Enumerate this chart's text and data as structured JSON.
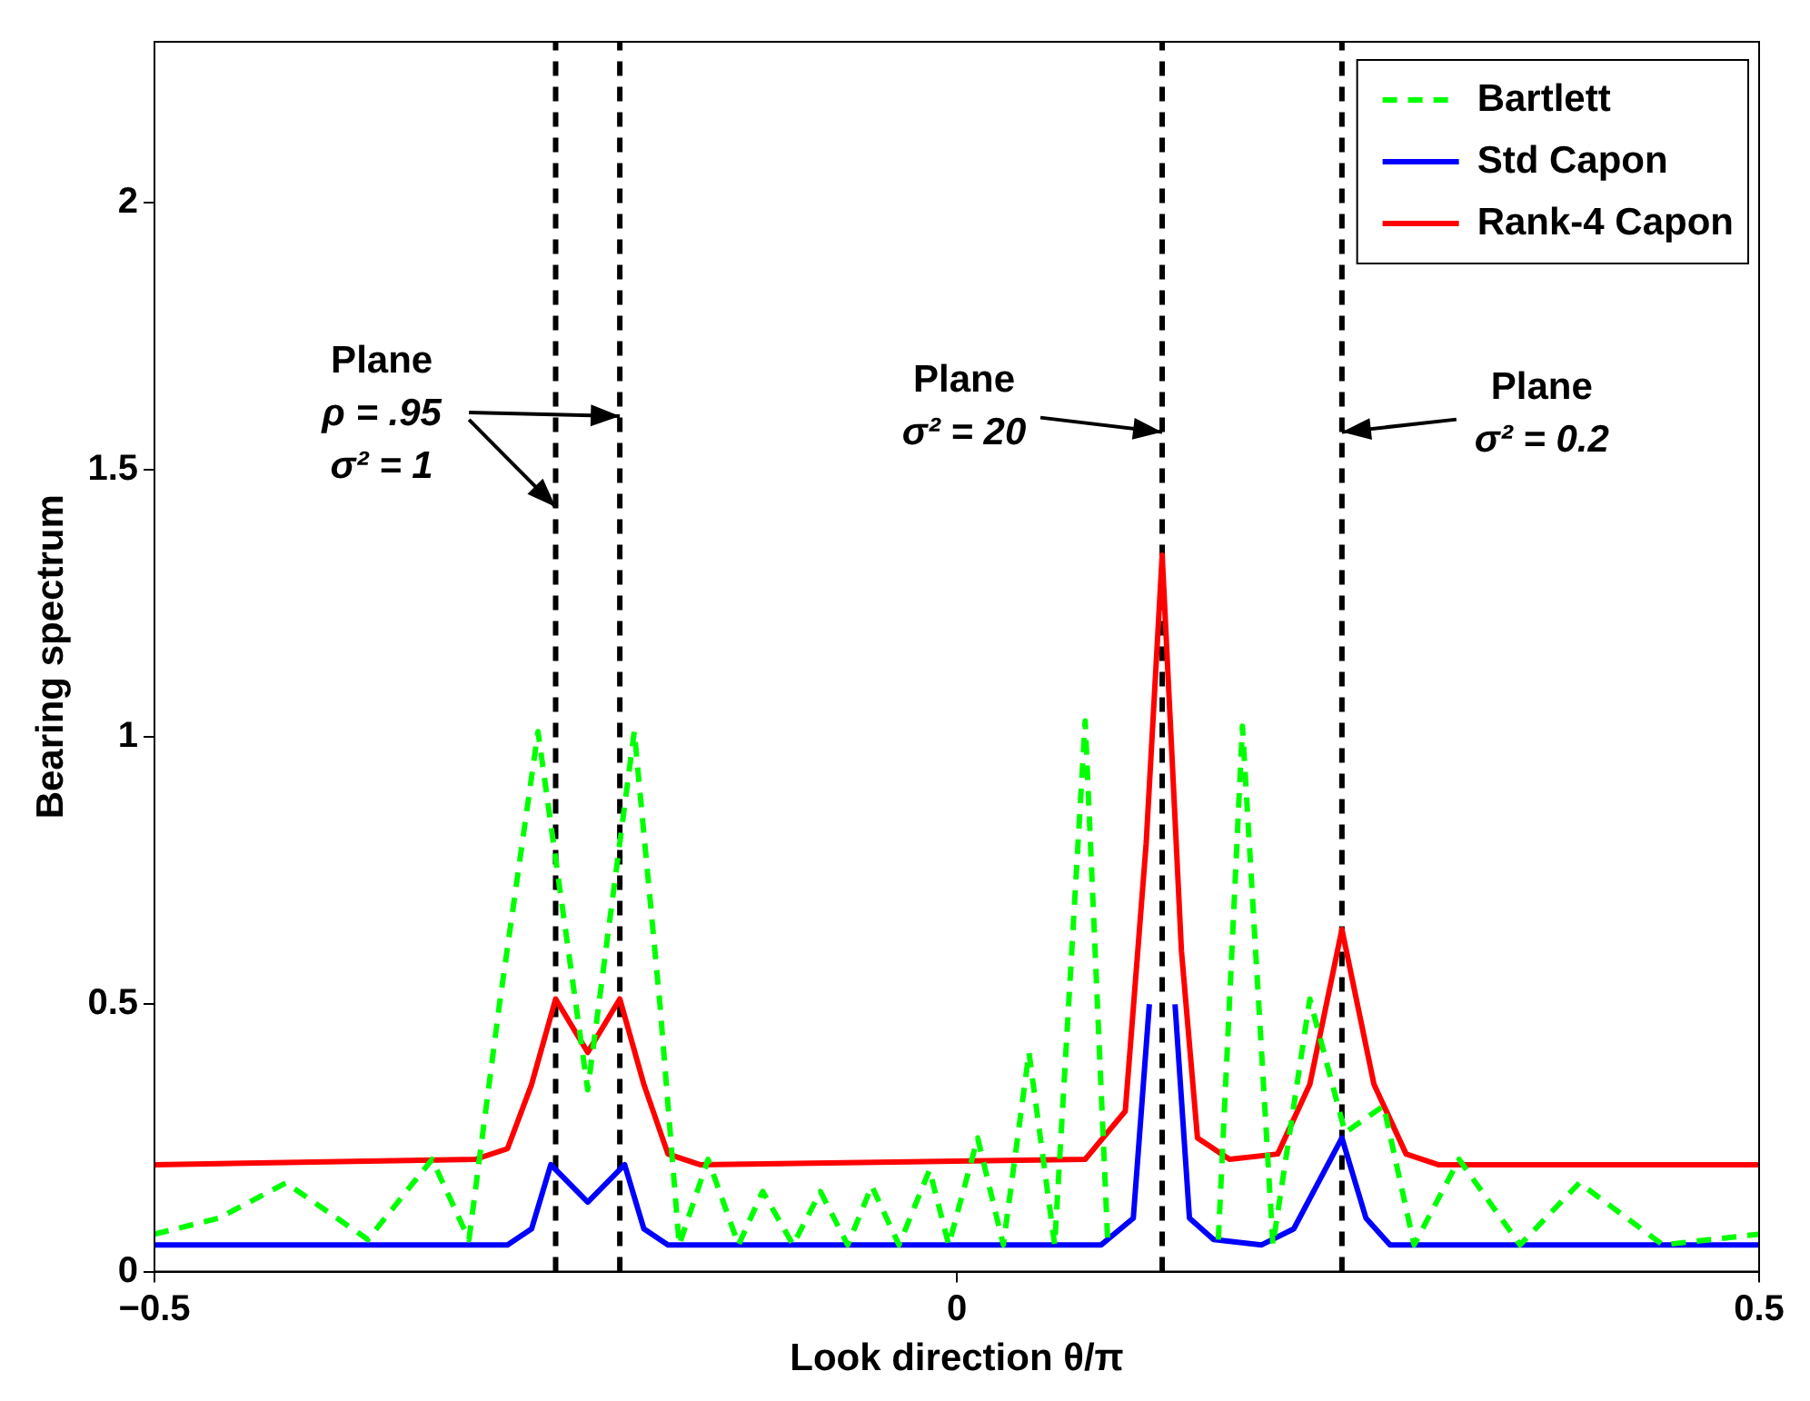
{
  "chart_data": {
    "type": "line",
    "xlabel": "Look direction θ/π",
    "ylabel": "Bearing spectrum",
    "xlim": [
      -0.5,
      0.5
    ],
    "xticks": [
      {
        "value": -0.5,
        "label": "−0.5"
      },
      0,
      0.5
    ],
    "ylim": [
      0,
      2.3
    ],
    "yticks": [
      0,
      0.5,
      1,
      1.5,
      2
    ],
    "grid": false,
    "legend": "top right",
    "marker": "none",
    "series": [
      {
        "name": "Bartlett",
        "color": "#00ff00",
        "line_style": "dashed",
        "x": [
          -0.5,
          -0.46,
          -0.418,
          -0.367,
          -0.327,
          -0.304,
          -0.285,
          -0.261,
          -0.23,
          -0.201,
          -0.185,
          -0.173,
          -0.155,
          -0.136,
          -0.121,
          -0.102,
          -0.085,
          -0.068,
          -0.053,
          -0.036,
          -0.017,
          -0.005,
          0.013,
          0.029,
          0.045,
          0.061,
          0.08,
          0.094,
          0.103,
          0.128,
          0.154,
          0.163,
          0.178,
          0.197,
          0.22,
          0.242,
          0.266,
          0.285,
          0.313,
          0.351,
          0.388,
          0.44,
          0.5
        ],
        "values": [
          0.07,
          0.1,
          0.166,
          0.06,
          0.21,
          0.06,
          0.5,
          1.01,
          0.34,
          1.01,
          0.5,
          0.05,
          0.21,
          0.05,
          0.15,
          0.05,
          0.15,
          0.05,
          0.16,
          0.05,
          0.19,
          0.05,
          0.25,
          0.05,
          0.41,
          0.05,
          1.03,
          0.06,
          null,
          null,
          null,
          0.06,
          1.02,
          0.05,
          0.51,
          0.26,
          0.31,
          0.05,
          0.21,
          0.05,
          0.166,
          0.05,
          0.07
        ]
      },
      {
        "name": "Std Capon",
        "color": "#0000ff",
        "line_style": "solid",
        "x": [
          -0.5,
          -0.28,
          -0.265,
          -0.253,
          -0.23,
          -0.207,
          -0.195,
          -0.18,
          0.09,
          0.11,
          0.12,
          0.124,
          0.132,
          0.136,
          0.145,
          0.16,
          0.19,
          0.21,
          0.24,
          0.255,
          0.27,
          0.5
        ],
        "values": [
          0.05,
          0.05,
          0.08,
          0.2,
          0.13,
          0.2,
          0.08,
          0.05,
          0.05,
          0.1,
          0.5,
          null,
          null,
          0.5,
          0.1,
          0.06,
          0.05,
          0.08,
          0.25,
          0.1,
          0.05,
          0.05
        ]
      },
      {
        "name": "Rank-4 Capon",
        "color": "#ff0000",
        "line_style": "solid",
        "x": [
          -0.5,
          -0.3,
          -0.28,
          -0.265,
          -0.25,
          -0.23,
          -0.21,
          -0.195,
          -0.18,
          -0.16,
          0.08,
          0.105,
          0.118,
          0.128,
          0.14,
          0.15,
          0.17,
          0.2,
          0.22,
          0.24,
          0.26,
          0.28,
          0.3,
          0.5
        ],
        "values": [
          0.2,
          0.21,
          0.23,
          0.35,
          0.51,
          0.41,
          0.51,
          0.35,
          0.22,
          0.2,
          0.21,
          0.3,
          0.8,
          1.34,
          0.6,
          0.25,
          0.21,
          0.22,
          0.35,
          0.64,
          0.35,
          0.22,
          0.2,
          0.2
        ]
      }
    ],
    "ref_lines": [
      {
        "axis": "x",
        "value": -0.25,
        "color": "#000000",
        "line_style": "dashed"
      },
      {
        "axis": "x",
        "value": -0.21,
        "color": "#000000",
        "line_style": "dashed"
      },
      {
        "axis": "x",
        "value": 0.128,
        "color": "#000000",
        "line_style": "dashed"
      },
      {
        "axis": "x",
        "value": 0.24,
        "color": "#000000",
        "line_style": "dashed"
      }
    ],
    "annotations": [
      {
        "text": "Plane\nρ = .95\nσ² = 1",
        "x": -0.21,
        "y": 1.6
      },
      {
        "text": "Plane\nσ² = 20",
        "x": 0.128,
        "y": 1.57
      },
      {
        "text": "Plane\nσ² = 0.2",
        "x": 0.24,
        "y": 1.57
      }
    ]
  }
}
